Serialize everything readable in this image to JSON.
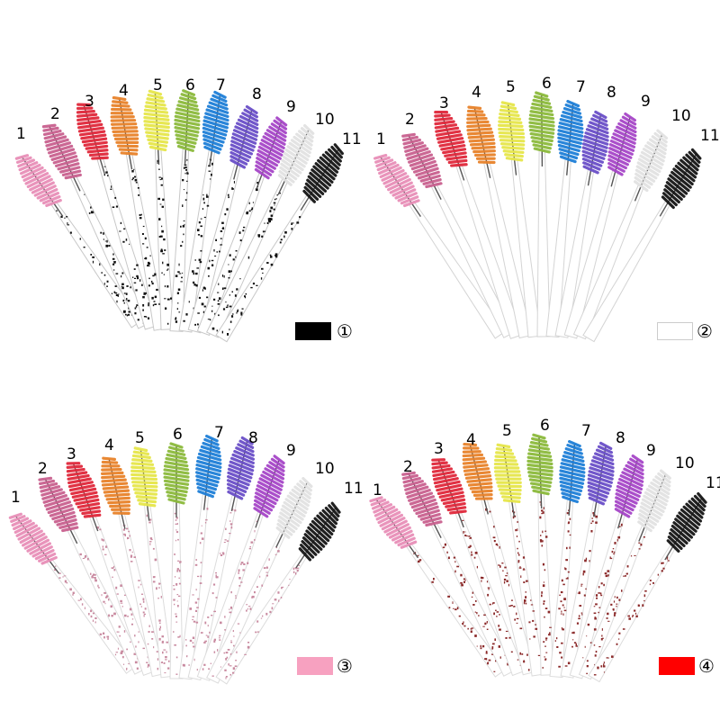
{
  "quadrants": [
    {
      "id": "q1",
      "handle_color": "#ffffff",
      "speckle_color": "#111111",
      "handle_edge": "#c8c8c8",
      "swatch_color": "#000000",
      "swatch_border": "#000000",
      "option_label": "①"
    },
    {
      "id": "q2",
      "handle_color": "#ffffff",
      "speckle_color": "",
      "handle_edge": "#d4d4d4",
      "swatch_color": "#ffffff",
      "swatch_border": "#cccccc",
      "option_label": "②"
    },
    {
      "id": "q3",
      "handle_color": "#ffffff",
      "speckle_color": "#c98aa0",
      "handle_edge": "#dcdcdc",
      "swatch_color": "#f7a1c0",
      "swatch_border": "#f7a1c0",
      "option_label": "③"
    },
    {
      "id": "q4",
      "handle_color": "#ffffff",
      "speckle_color": "#8b2a2a",
      "handle_edge": "#dcdcdc",
      "swatch_color": "#ff0000",
      "swatch_border": "#ff0000",
      "option_label": "④"
    }
  ],
  "brushes": [
    {
      "number": "1",
      "color": "#e88fb8"
    },
    {
      "number": "2",
      "color": "#c9608f"
    },
    {
      "number": "3",
      "color": "#e0283a"
    },
    {
      "number": "4",
      "color": "#e8822a"
    },
    {
      "number": "5",
      "color": "#e6e64a"
    },
    {
      "number": "6",
      "color": "#8cba3c"
    },
    {
      "number": "7",
      "color": "#1e7fd8"
    },
    {
      "number": "8",
      "color": "#6a4fc8"
    },
    {
      "number": "9",
      "color": "#a646c8"
    },
    {
      "number": "10",
      "color": "#e2e2e2"
    },
    {
      "number": "11",
      "color": "#151515"
    }
  ]
}
